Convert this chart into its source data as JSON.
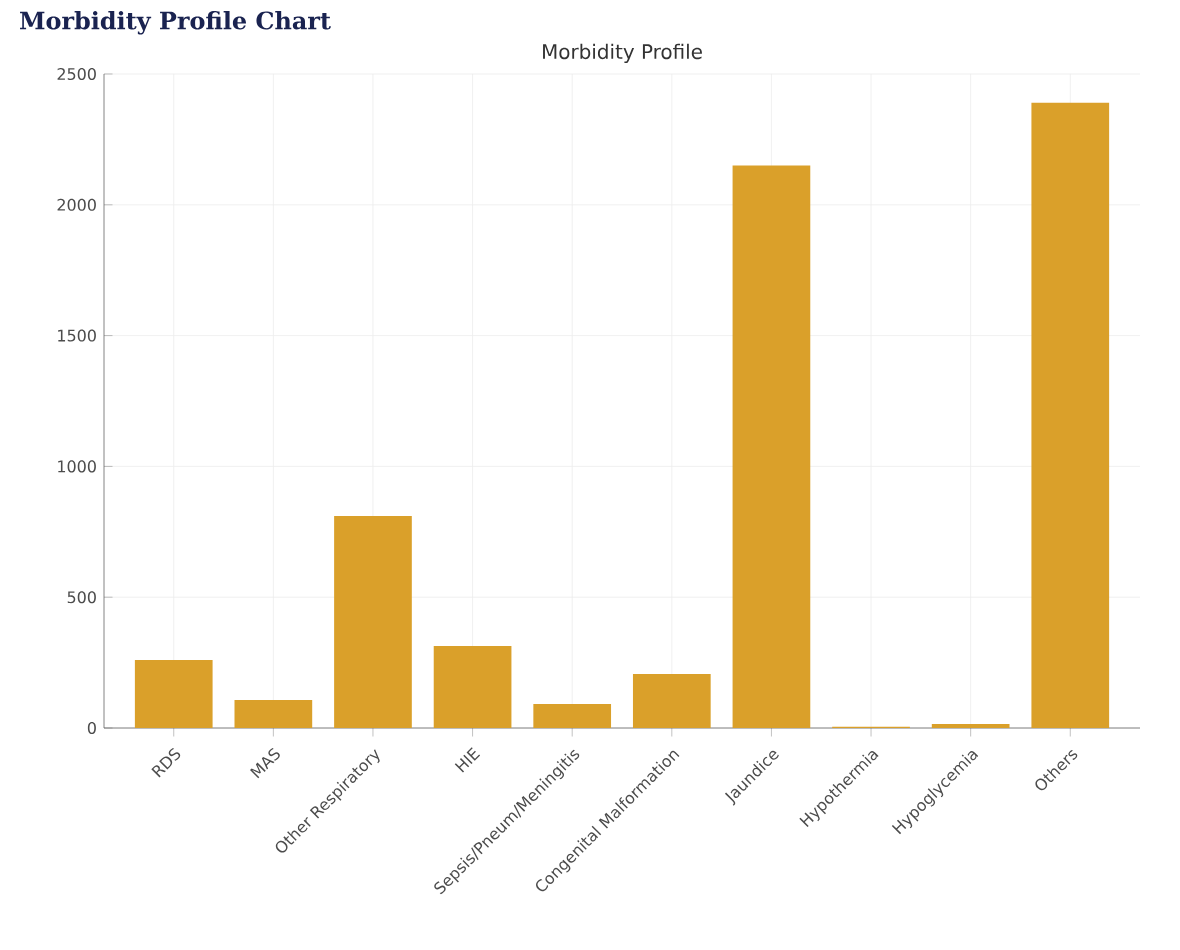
{
  "chart_data": {
    "type": "bar",
    "title": "Morbidity Profile",
    "annotations": [
      "Morbidity Profile Chart"
    ],
    "categories": [
      "RDS",
      "MAS",
      "Other Respiratory",
      "HIE",
      "Sepsis/Pneum/Meningitis",
      "Congenital Malformation",
      "Jaundice",
      "Hypothermia",
      "Hypoglycemia",
      "Others"
    ],
    "values": [
      260,
      107,
      810,
      313,
      92,
      206,
      2150,
      5,
      15,
      2390
    ],
    "color": "#daa02a",
    "ylim": [
      0,
      2500
    ],
    "yticks": [
      0,
      500,
      1000,
      1500,
      2000,
      2500
    ],
    "grid": true
  }
}
